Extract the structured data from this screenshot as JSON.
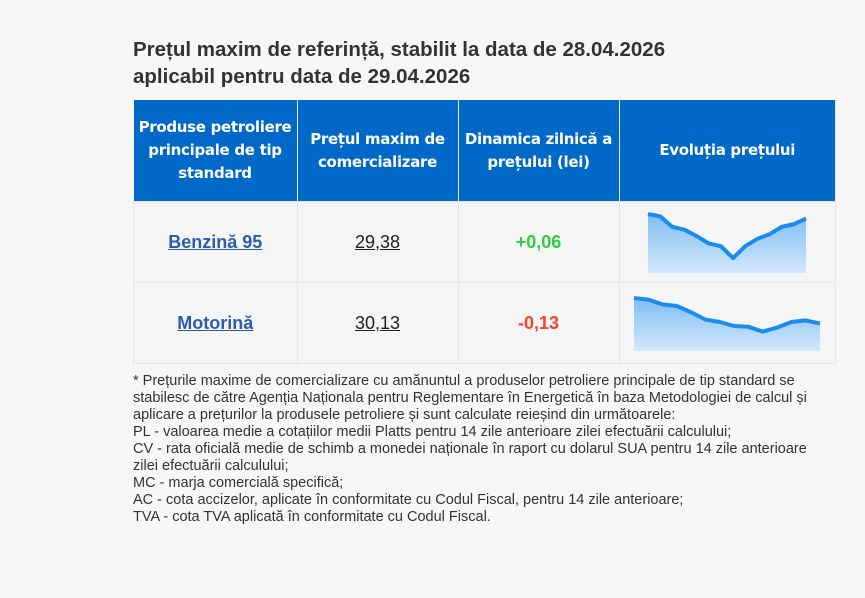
{
  "title_line1": "Prețul maxim de referință, stabilit la data de 28.04.2026",
  "title_line2": "aplicabil pentru data de 29.04.2026",
  "headers": [
    "Produse petroliere principale de tip standard",
    "Prețul maxim de comercializare",
    "Dinamica zilnică a prețului (lei)",
    "Evoluția prețului"
  ],
  "rows": [
    {
      "product": "Benzină 95",
      "price": "29,38",
      "change": "+0,06",
      "trend": [
        1.0,
        0.95,
        0.72,
        0.66,
        0.52,
        0.36,
        0.3,
        0.04,
        0.3,
        0.46,
        0.56,
        0.72,
        0.78,
        0.9
      ]
    },
    {
      "product": "Motorină",
      "price": "30,13",
      "change": "-0,13",
      "trend": [
        1.0,
        0.96,
        0.84,
        0.8,
        0.64,
        0.46,
        0.4,
        0.3,
        0.28,
        0.16,
        0.26,
        0.4,
        0.44,
        0.36
      ]
    }
  ],
  "colors": {
    "header": "#0069c8",
    "up": "#2ecc40",
    "down": "#f0442c",
    "line": "#1a8cf0"
  },
  "notes": [
    "* Prețurile maxime de comercializare cu amănuntul a produselor petroliere principale de tip standard se stabilesc de către Agenția Naționala pentru Reglementare în Energetică în baza Metodologiei de calcul și aplicare a prețurilor la produsele petroliere și sunt calculate reieșind din următoarele:",
    "PL - valoarea medie a cotațiilor medii Platts pentru 14 zile anterioare zilei efectuării calculului;",
    "CV - rata oficială medie de schimb a monedei naționale în raport cu dolarul SUA pentru 14 zile anterioare zilei efectuării calculului;",
    "MC - marja comercială specifică;",
    "AC - cota accizelor, aplicate în conformitate cu Codul Fiscal, pentru 14 zile anterioare;",
    "TVA - cota TVA aplicată în conformitate cu Codul Fiscal."
  ]
}
